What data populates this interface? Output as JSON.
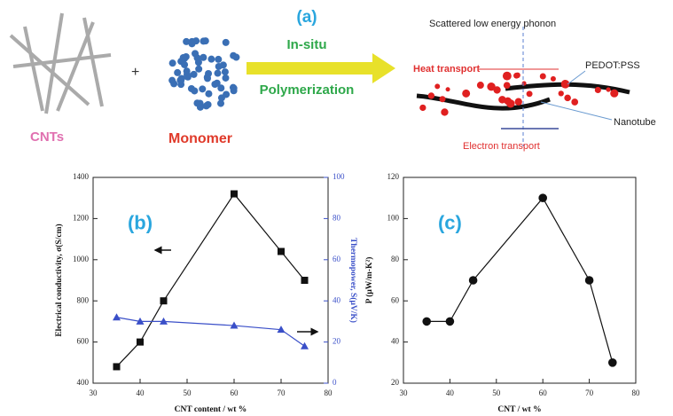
{
  "diagram": {
    "title": "(a)",
    "cnts_label": "CNTs",
    "plus": "+",
    "monomer_label": "Monomer",
    "arrow_top": "In-situ",
    "arrow_bottom": "Polymerization",
    "phonon": "Scattered low energy phonon",
    "heat": "Heat transport",
    "polymer": "PEDOT:PSS",
    "nanotube": "Nanotube",
    "electron": "Electron transport"
  },
  "chart_data": [
    {
      "type": "line",
      "panel": "(b)",
      "x_label": "CNT content / wt %",
      "y_label": "Electrical conductivity, σ(S/cm)",
      "y2_label": "Thermopower, S(μV/K)",
      "x": [
        35,
        40,
        45,
        60,
        70,
        75
      ],
      "series": [
        {
          "color": "#111111",
          "marker": "square",
          "values": [
            480,
            600,
            800,
            1320,
            1040,
            900
          ]
        },
        {
          "color": "#3a4fc8",
          "marker": "triangle",
          "axis": "y2",
          "values": [
            32,
            30,
            30,
            28,
            26,
            18
          ]
        }
      ],
      "xlim": [
        30,
        80
      ],
      "xticks": [
        30,
        40,
        50,
        60,
        70,
        80
      ],
      "ylim": [
        400,
        1400
      ],
      "yticks": [
        400,
        600,
        800,
        1000,
        1200,
        1400
      ],
      "y2lim": [
        0,
        100
      ],
      "y2ticks": [
        0,
        20,
        40,
        60,
        80,
        100
      ]
    },
    {
      "type": "line",
      "panel": "(c)",
      "x_label": "CNT / wt %",
      "y_label": "P (μW/m-K²)",
      "x": [
        35,
        40,
        45,
        60,
        70,
        75
      ],
      "series": [
        {
          "color": "#111111",
          "marker": "circle",
          "values": [
            50,
            50,
            70,
            110,
            70,
            30
          ]
        }
      ],
      "xlim": [
        30,
        80
      ],
      "xticks": [
        30,
        40,
        50,
        60,
        70,
        80
      ],
      "ylim": [
        20,
        120
      ],
      "yticks": [
        20,
        40,
        60,
        80,
        100,
        120
      ]
    }
  ]
}
